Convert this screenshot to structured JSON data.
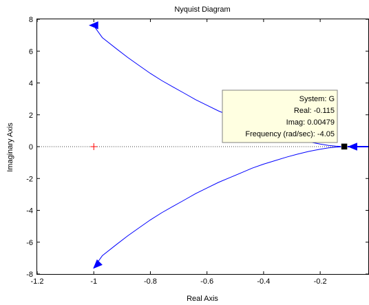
{
  "chart_data": {
    "type": "line",
    "title": "Nyquist Diagram",
    "xlabel": "Real Axis",
    "ylabel": "Imaginary Axis",
    "xlim": [
      -1.2,
      -0.03
    ],
    "ylim": [
      -8,
      8
    ],
    "xticks": [
      -1.2,
      -1,
      -0.8,
      -0.6,
      -0.4,
      -0.2
    ],
    "xtick_labels": [
      "-1.2",
      "-1",
      "-0.8",
      "-0.6",
      "-0.4",
      "-0.2"
    ],
    "yticks": [
      -8,
      -6,
      -4,
      -2,
      0,
      2,
      4,
      6,
      8
    ],
    "ytick_labels": [
      "-8",
      "-6",
      "-4",
      "-2",
      "0",
      "2",
      "4",
      "6",
      "8"
    ],
    "grid": false,
    "series": [
      {
        "color": "#0000ff",
        "x": [
          -1.0,
          -0.97,
          -0.92,
          -0.88,
          -0.84,
          -0.8,
          -0.76,
          -0.72,
          -0.68,
          -0.64,
          -0.6,
          -0.56,
          -0.52,
          -0.48,
          -0.44,
          -0.4,
          -0.36,
          -0.32,
          -0.28,
          -0.24,
          -0.2,
          -0.17,
          -0.145,
          -0.125,
          -0.115
        ],
        "y": [
          7.6,
          6.85,
          6.15,
          5.6,
          5.1,
          4.6,
          4.15,
          3.75,
          3.35,
          2.95,
          2.6,
          2.25,
          1.95,
          1.65,
          1.35,
          1.1,
          0.88,
          0.66,
          0.47,
          0.3,
          0.16,
          0.08,
          0.03,
          0.01,
          0.005
        ]
      },
      {
        "color": "#0000ff",
        "x": [
          -1.0,
          -0.97,
          -0.92,
          -0.88,
          -0.84,
          -0.8,
          -0.76,
          -0.72,
          -0.68,
          -0.64,
          -0.6,
          -0.56,
          -0.52,
          -0.48,
          -0.44,
          -0.4,
          -0.36,
          -0.32,
          -0.28,
          -0.24,
          -0.2,
          -0.17,
          -0.145,
          -0.125,
          -0.115
        ],
        "y": [
          -7.6,
          -6.85,
          -6.15,
          -5.6,
          -5.1,
          -4.6,
          -4.15,
          -3.75,
          -3.35,
          -2.95,
          -2.6,
          -2.25,
          -1.95,
          -1.65,
          -1.35,
          -1.1,
          -0.88,
          -0.66,
          -0.47,
          -0.3,
          -0.16,
          -0.08,
          -0.03,
          -0.01,
          -0.005
        ]
      },
      {
        "color": "#0000ff",
        "x": [
          -0.115,
          -0.1,
          -0.08,
          -0.06,
          -0.04,
          -0.03
        ],
        "y": [
          0.02,
          0.02,
          0.02,
          0.02,
          0.02,
          0.02
        ]
      },
      {
        "color": "#0000ff",
        "x": [
          -0.115,
          -0.1,
          -0.08,
          -0.06,
          -0.04,
          -0.03
        ],
        "y": [
          -0.02,
          -0.02,
          -0.02,
          -0.02,
          -0.02,
          -0.02
        ]
      }
    ],
    "arrows": [
      {
        "x": -1.0,
        "y": 7.62,
        "direction": "left",
        "color": "#0000ff"
      },
      {
        "x": -0.99,
        "y": -7.45,
        "direction": "down-left",
        "color": "#0000ff"
      },
      {
        "x": -0.085,
        "y": 0.0,
        "direction": "left",
        "color": "#0000ff"
      }
    ],
    "critical_point": {
      "x": -1,
      "y": 0,
      "marker": "+",
      "color": "#ff0000"
    },
    "zero_line": {
      "y": 0,
      "style": "dotted",
      "color": "#000000"
    },
    "datatip": {
      "x": -0.115,
      "y": 0.00479,
      "lines": [
        "System: G",
        "Real: -0.115",
        "Imag: 0.00479",
        "Frequency (rad/sec): -4.05"
      ],
      "background": "#ffffe1"
    }
  }
}
